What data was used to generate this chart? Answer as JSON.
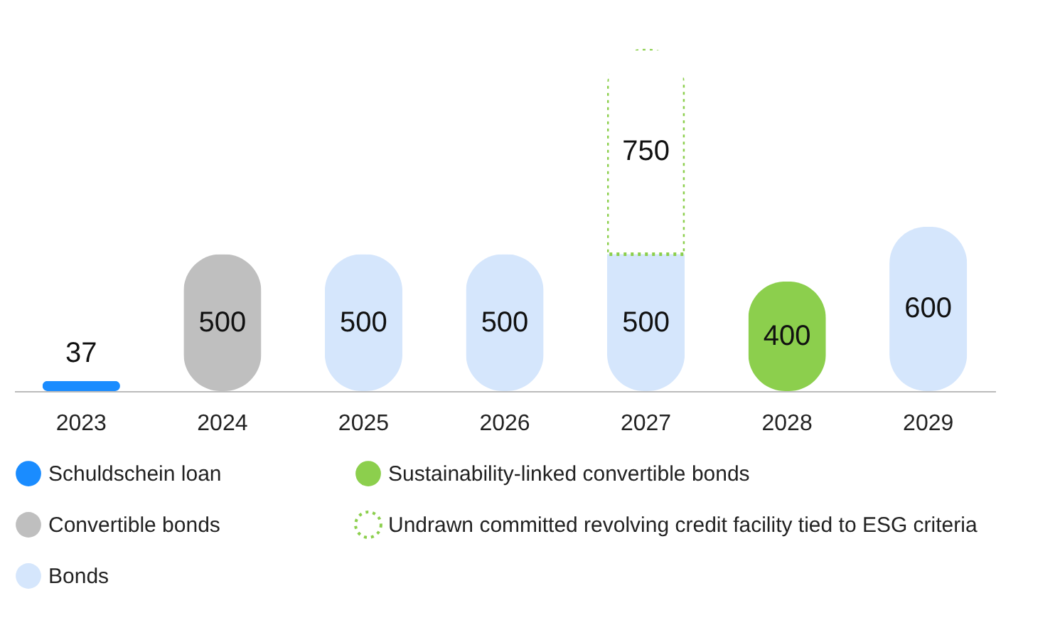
{
  "chart_data": {
    "type": "bar",
    "stacked": true,
    "data_labels": true,
    "legend": "bottom",
    "categories": [
      "2023",
      "2024",
      "2025",
      "2026",
      "2027",
      "2028",
      "2029"
    ],
    "series": [
      {
        "name": "Schuldschein loan",
        "color": "#1a8cff",
        "values": [
          37,
          null,
          null,
          null,
          null,
          null,
          null
        ]
      },
      {
        "name": "Convertible bonds",
        "color": "#bfbfbf",
        "values": [
          null,
          500,
          null,
          null,
          null,
          null,
          null
        ]
      },
      {
        "name": "Bonds",
        "color": "#d5e6fc",
        "values": [
          null,
          null,
          500,
          500,
          500,
          null,
          600
        ]
      },
      {
        "name": "Sustainability-linked convertible bonds",
        "color": "#8ccf4d",
        "values": [
          null,
          null,
          null,
          null,
          null,
          400,
          null
        ]
      },
      {
        "name": "Undrawn committed revolving credit facility tied to ESG criteria",
        "color": "#8ccf4d",
        "line_style": "dotted",
        "values": [
          null,
          null,
          null,
          null,
          750,
          null,
          null
        ]
      }
    ]
  }
}
